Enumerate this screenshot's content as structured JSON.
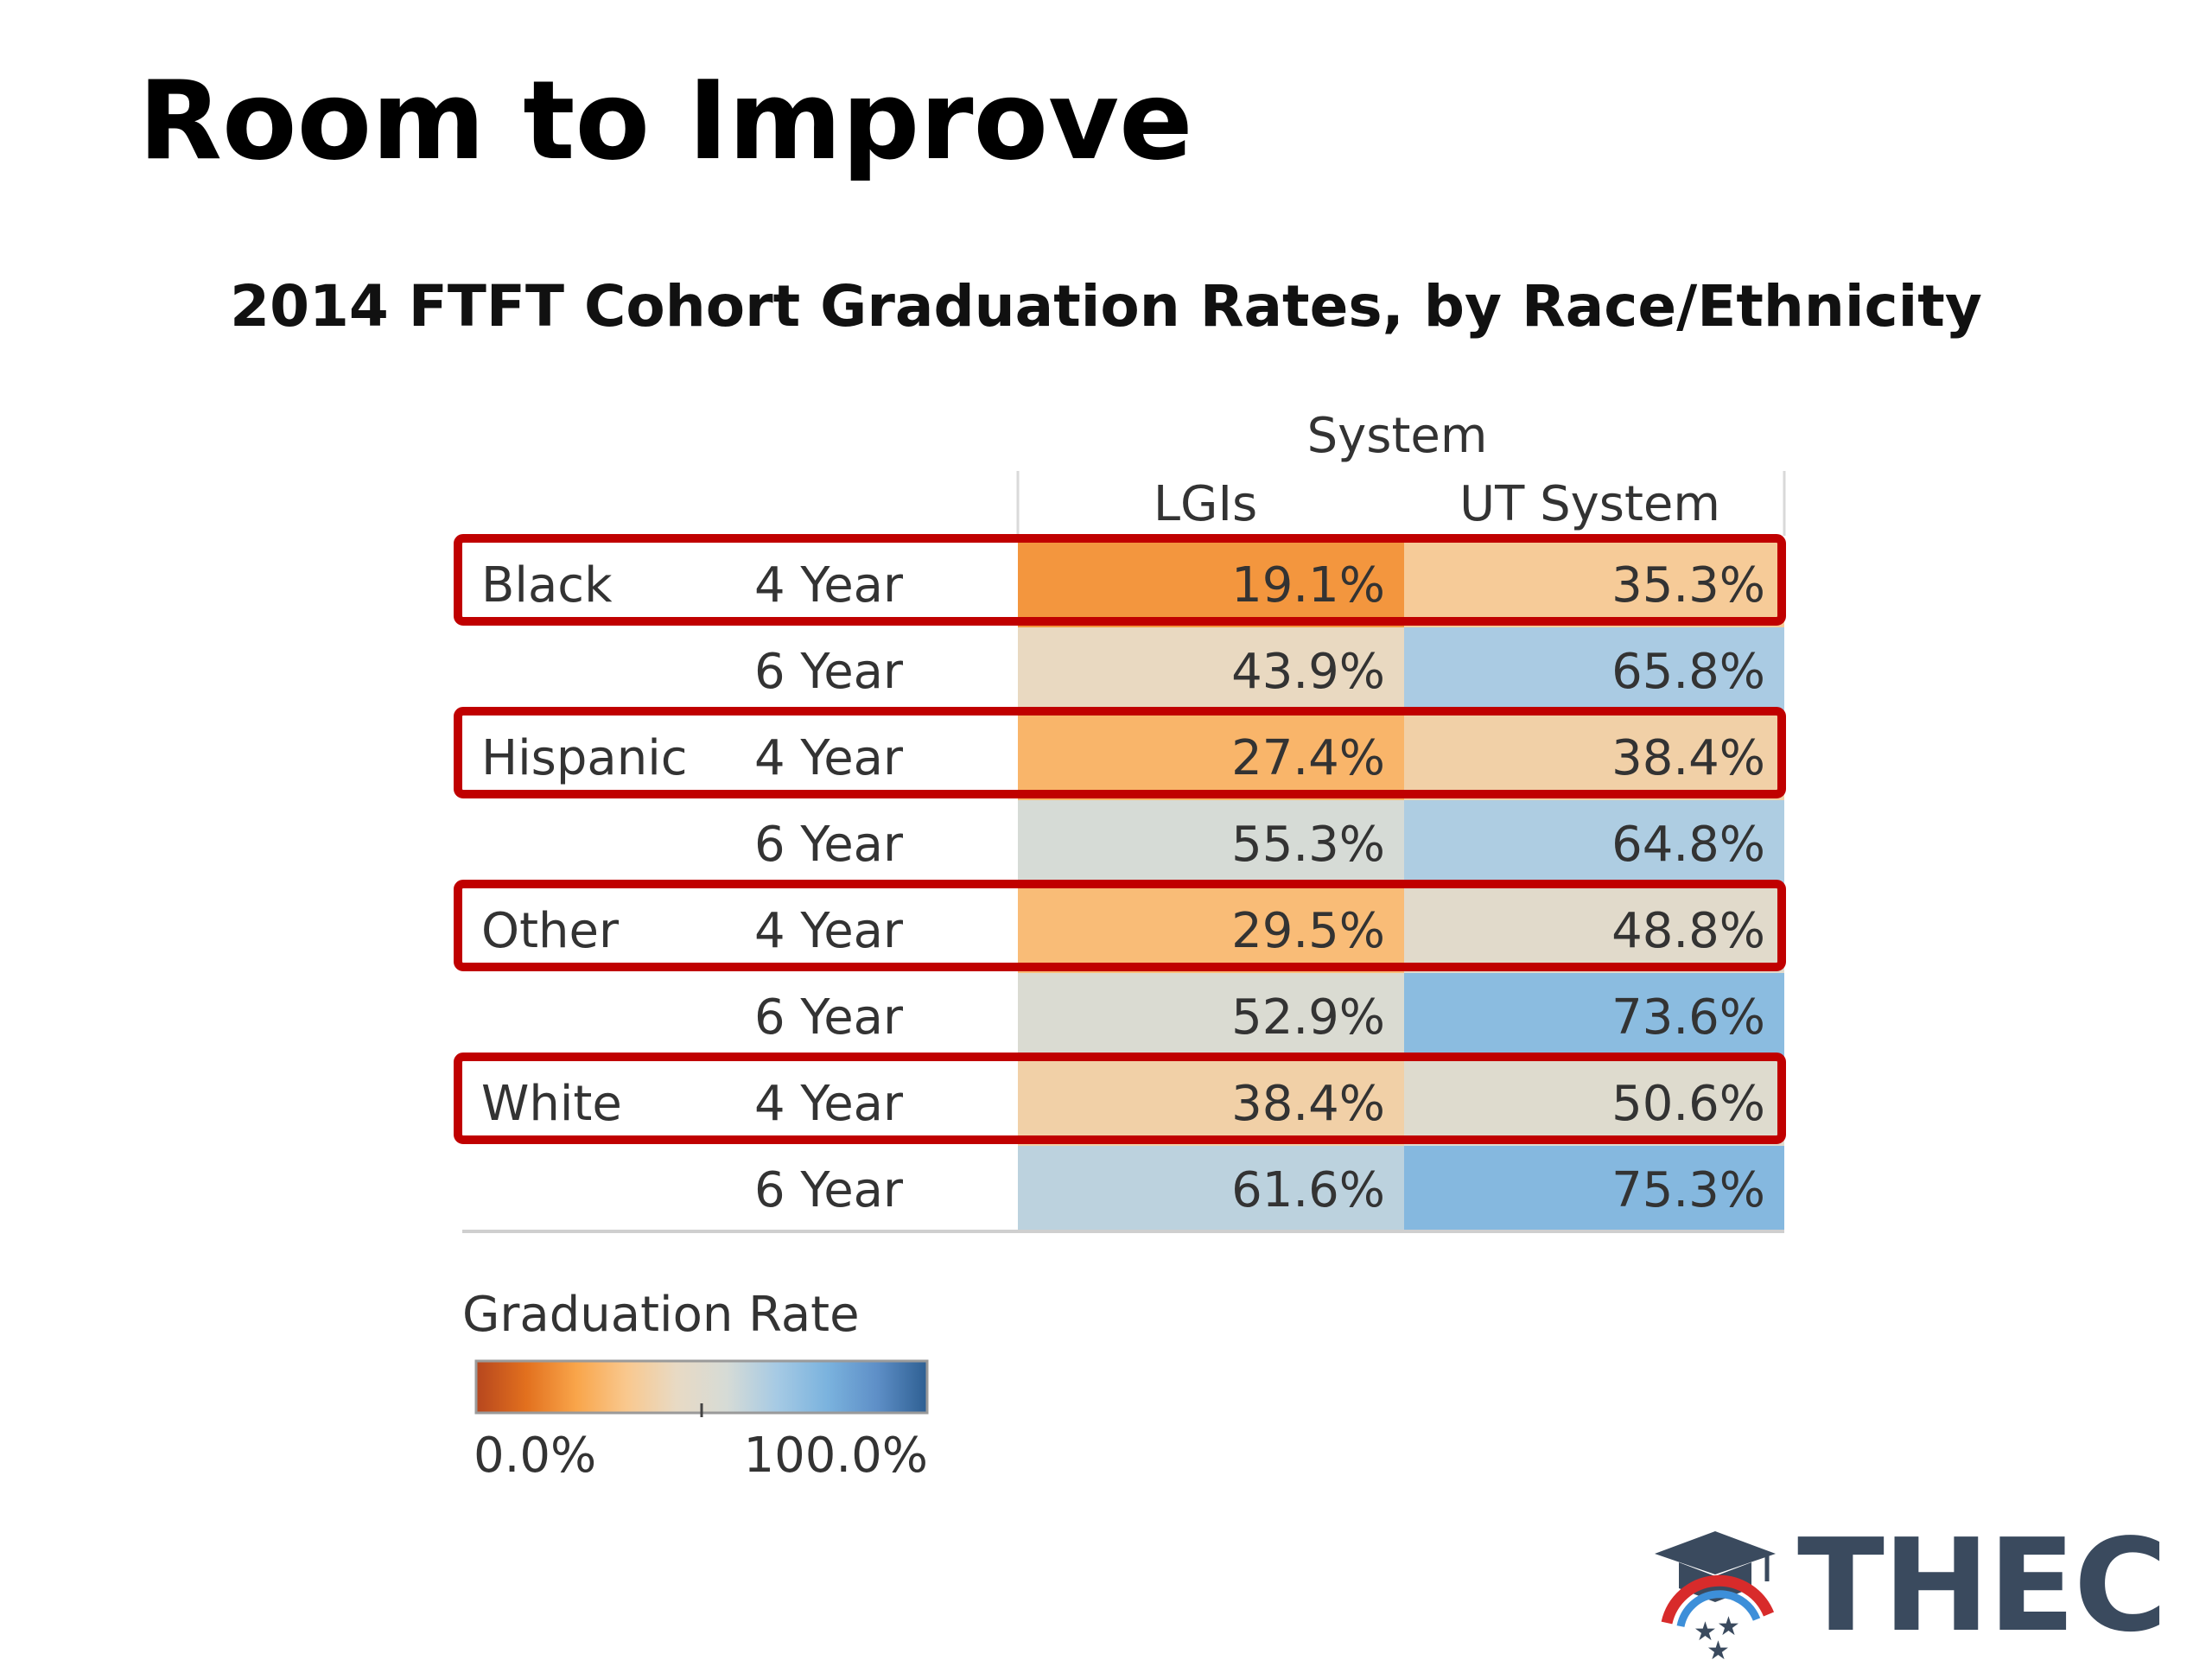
{
  "slide": {
    "title": "Room to Improve"
  },
  "chart_data": {
    "type": "heatmap",
    "title": "2014 FTFT Cohort Graduation Rates, by Race/Ethnicity",
    "column_group": "System",
    "columns": [
      "LGIs",
      "UT System"
    ],
    "rows": [
      {
        "group": "Black",
        "period": "4 Year",
        "values": [
          19.1,
          35.3
        ],
        "labels": [
          "19.1%",
          "35.3%"
        ],
        "highlighted": true
      },
      {
        "group": "",
        "period": "6 Year",
        "values": [
          43.9,
          65.8
        ],
        "labels": [
          "43.9%",
          "65.8%"
        ],
        "highlighted": false
      },
      {
        "group": "Hispanic",
        "period": "4 Year",
        "values": [
          27.4,
          38.4
        ],
        "labels": [
          "27.4%",
          "38.4%"
        ],
        "highlighted": true
      },
      {
        "group": "",
        "period": "6 Year",
        "values": [
          55.3,
          64.8
        ],
        "labels": [
          "55.3%",
          "64.8%"
        ],
        "highlighted": false
      },
      {
        "group": "Other",
        "period": "4 Year",
        "values": [
          29.5,
          48.8
        ],
        "labels": [
          "29.5%",
          "48.8%"
        ],
        "highlighted": true
      },
      {
        "group": "",
        "period": "6 Year",
        "values": [
          52.9,
          73.6
        ],
        "labels": [
          "52.9%",
          "73.6%"
        ],
        "highlighted": false
      },
      {
        "group": "White",
        "period": "4 Year",
        "values": [
          38.4,
          50.6
        ],
        "labels": [
          "38.4%",
          "50.6%"
        ],
        "highlighted": true
      },
      {
        "group": "",
        "period": "6 Year",
        "values": [
          61.6,
          75.3
        ],
        "labels": [
          "61.6%",
          "75.3%"
        ],
        "highlighted": false
      }
    ],
    "legend": {
      "title": "Graduation Rate",
      "min_label": "0.0%",
      "max_label": "100.0%",
      "min": 0,
      "max": 100,
      "midpoint": 50
    },
    "colors": {
      "scale": [
        "#b6461e",
        "#e2701e",
        "#f9a54a",
        "#f9c88e",
        "#e8dac4",
        "#d6dbd6",
        "#a6cae4",
        "#7bb3de",
        "#5e8fc7",
        "#2e5f92"
      ],
      "highlight_border": "#c00000"
    }
  },
  "logo": {
    "text": "THEC",
    "icon": "graduation-cap-stars-icon",
    "text_color": "#3a4a5e",
    "accent_red": "#d82b2b",
    "accent_blue": "#3d8fd9"
  }
}
